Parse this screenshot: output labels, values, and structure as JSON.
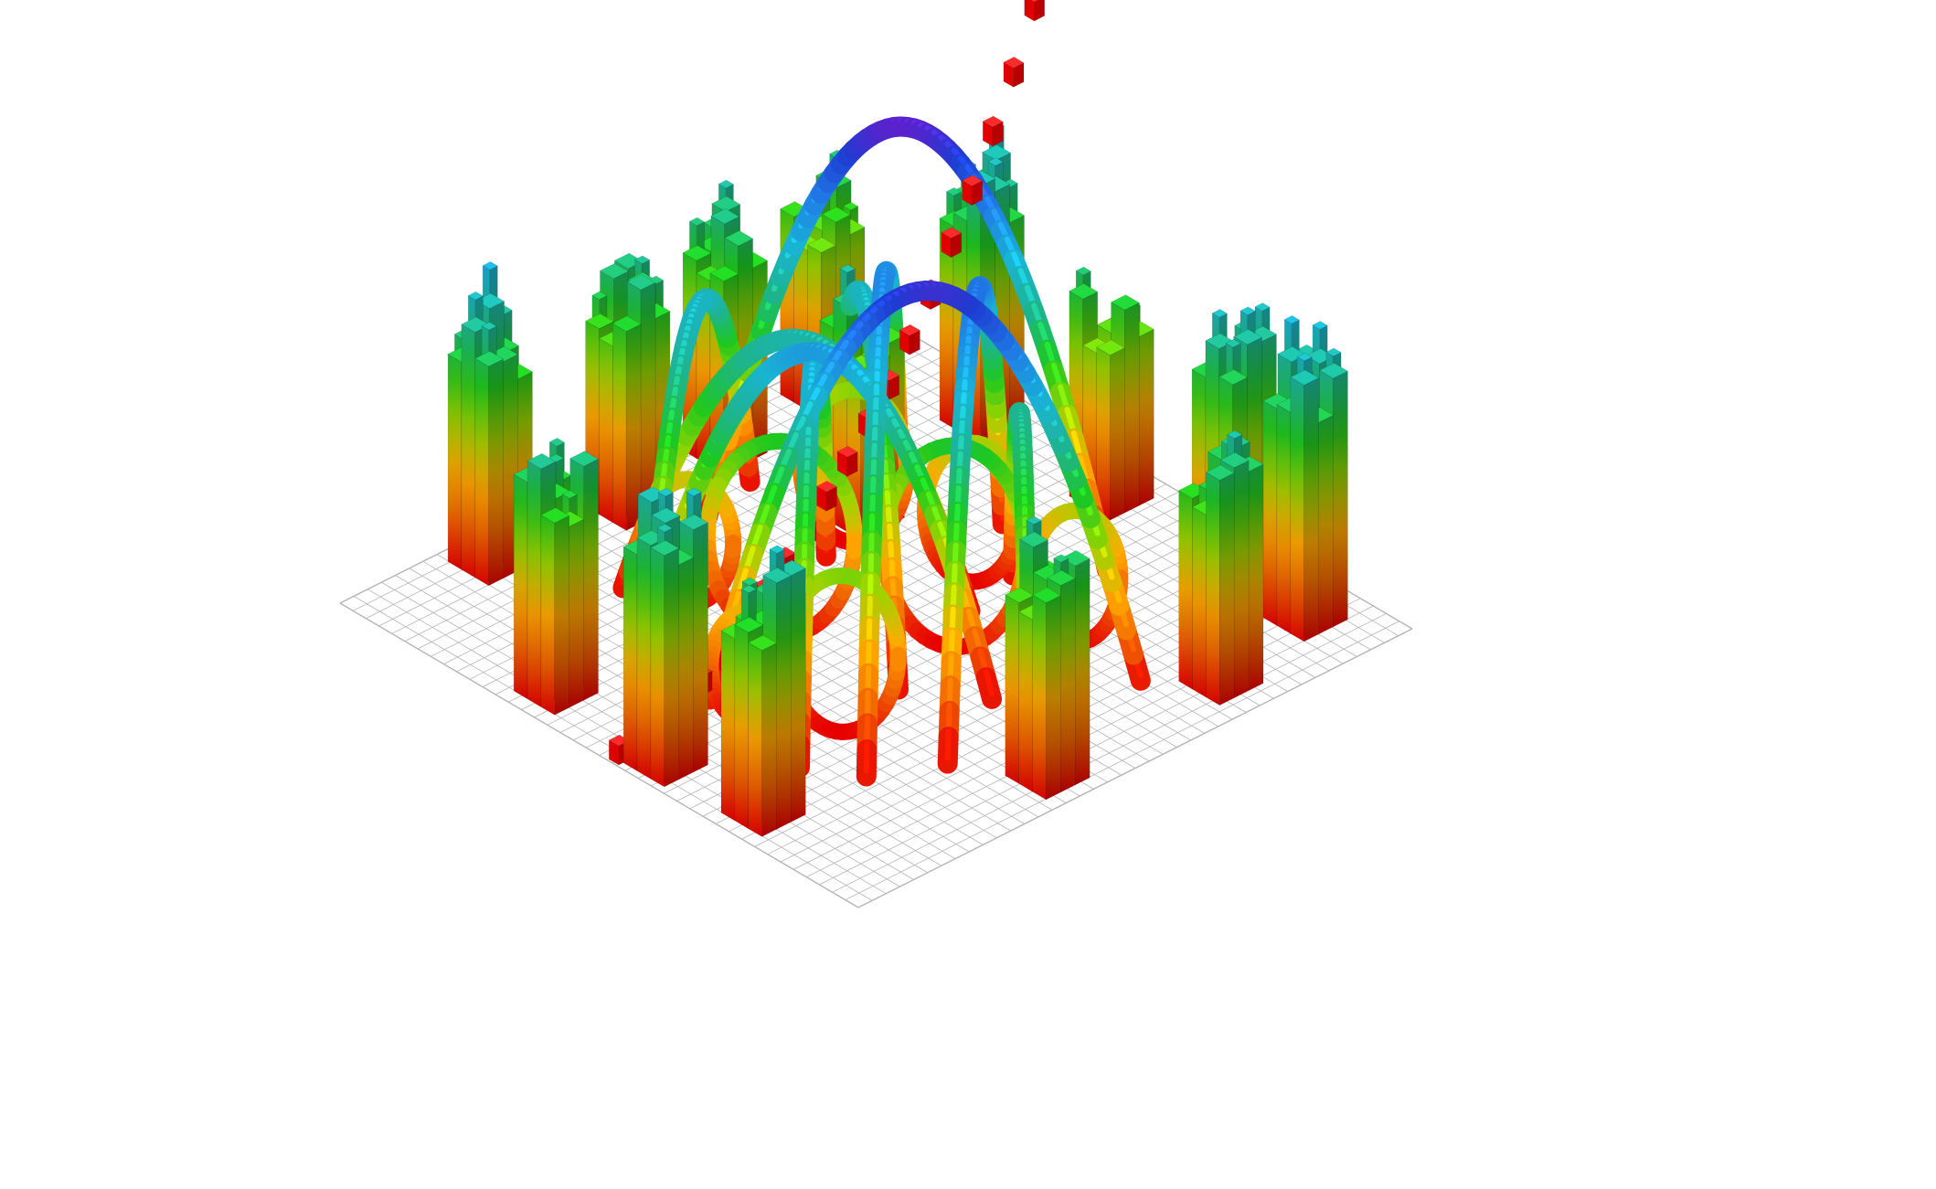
{
  "scene": {
    "background": "#ffffff",
    "grid": {
      "cells": 40,
      "color": "#b5b5b5"
    },
    "color_ramp": [
      "#e60000",
      "#f06400",
      "#ffaa00",
      "#9bd400",
      "#1ec81e",
      "#1eb48c",
      "#19b4d2",
      "#2080e6",
      "#1e3cd2",
      "#7a14c8"
    ],
    "tower_clusters": [
      {
        "u": 2.5,
        "v": 7.5,
        "h": 6.2
      },
      {
        "u": 3.0,
        "v": 15.0,
        "h": 6.8
      },
      {
        "u": 3.5,
        "v": 22.5,
        "h": 6.8
      },
      {
        "u": 2.5,
        "v": 31.5,
        "h": 7.6
      },
      {
        "u": 10.0,
        "v": 3.0,
        "h": 7.8
      },
      {
        "u": 20.0,
        "v": 3.0,
        "h": 6.2
      },
      {
        "u": 12.5,
        "v": 14.0,
        "h": 6.6
      },
      {
        "u": 30.0,
        "v": 3.5,
        "h": 7.2
      },
      {
        "u": 35.5,
        "v": 3.5,
        "h": 7.4
      },
      {
        "u": 37.0,
        "v": 11.0,
        "h": 6.8
      },
      {
        "u": 37.5,
        "v": 24.0,
        "h": 6.8
      },
      {
        "u": 30.0,
        "v": 37.5,
        "h": 7.2
      },
      {
        "u": 23.0,
        "v": 38.0,
        "h": 7.6
      },
      {
        "u": 14.0,
        "v": 37.5,
        "h": 7.0
      }
    ],
    "arch_tubes": [
      {
        "a": [
          10,
          9
        ],
        "b": [
          31,
          31
        ],
        "h": 9.5
      },
      {
        "a": [
          7,
          20
        ],
        "b": [
          25,
          8
        ],
        "h": 12.0
      },
      {
        "a": [
          20,
          32
        ],
        "b": [
          34,
          14
        ],
        "h": 11.5
      },
      {
        "a": [
          13,
          30
        ],
        "b": [
          30,
          21
        ],
        "h": 9.0
      },
      {
        "a": [
          8,
          12
        ],
        "b": [
          26,
          24
        ],
        "h": 8.0
      },
      {
        "a": [
          18,
          9
        ],
        "b": [
          33,
          27
        ],
        "h": 10.0
      },
      {
        "a": [
          9,
          28
        ],
        "b": [
          23,
          16
        ],
        "h": 7.5
      },
      {
        "a": [
          14,
          18
        ],
        "b": [
          28,
          33
        ],
        "h": 8.5
      },
      {
        "a": [
          22,
          12
        ],
        "b": [
          35,
          23
        ],
        "h": 7.0
      },
      {
        "a": [
          6,
          16
        ],
        "b": [
          17,
          34
        ],
        "h": 8.0
      }
    ],
    "rings": [
      {
        "u": 18.0,
        "v": 25.0,
        "r": 5.0,
        "h": 5.6
      },
      {
        "u": 25.0,
        "v": 19.0,
        "r": 4.8,
        "h": 5.8
      },
      {
        "u": 14.0,
        "v": 16.0,
        "r": 3.6,
        "h": 4.4
      },
      {
        "u": 27.0,
        "v": 29.0,
        "r": 3.8,
        "h": 4.5
      },
      {
        "u": 12.5,
        "v": 26.5,
        "r": 3.0,
        "h": 3.6
      },
      {
        "u": 21.0,
        "v": 14.0,
        "r": 3.2,
        "h": 4.0
      },
      {
        "u": 29.0,
        "v": 14.0,
        "r": 3.0,
        "h": 3.8
      },
      {
        "u": 23.0,
        "v": 32.0,
        "r": 2.6,
        "h": 3.2
      }
    ],
    "red_column": [
      [
        21.0,
        39.5,
        0.0
      ],
      [
        21.0,
        38.0,
        0.0
      ],
      [
        21.0,
        36.5,
        0.0
      ],
      [
        21.0,
        35.0,
        0.3
      ],
      [
        21.0,
        33.5,
        0.8
      ],
      [
        21.0,
        32.0,
        1.2
      ],
      [
        21.0,
        30.5,
        1.8
      ],
      [
        21.0,
        29.0,
        2.4
      ],
      [
        21.0,
        27.5,
        3.0
      ],
      [
        21.0,
        26.0,
        3.6
      ],
      [
        21.0,
        24.5,
        4.3
      ],
      [
        21.0,
        23.0,
        5.0
      ],
      [
        21.0,
        21.5,
        5.8
      ],
      [
        21.0,
        20.0,
        6.6
      ],
      [
        21.0,
        18.5,
        7.6
      ],
      [
        21.0,
        17.0,
        8.6
      ],
      [
        21.0,
        15.5,
        9.8
      ],
      [
        21.0,
        14.0,
        11.0
      ],
      [
        21.0,
        12.5,
        12.4
      ],
      [
        21.0,
        11.0,
        13.8
      ],
      [
        21.0,
        9.5,
        15.4
      ],
      [
        21.0,
        8.0,
        17.2
      ],
      [
        20.5,
        6.5,
        19.0
      ]
    ]
  }
}
